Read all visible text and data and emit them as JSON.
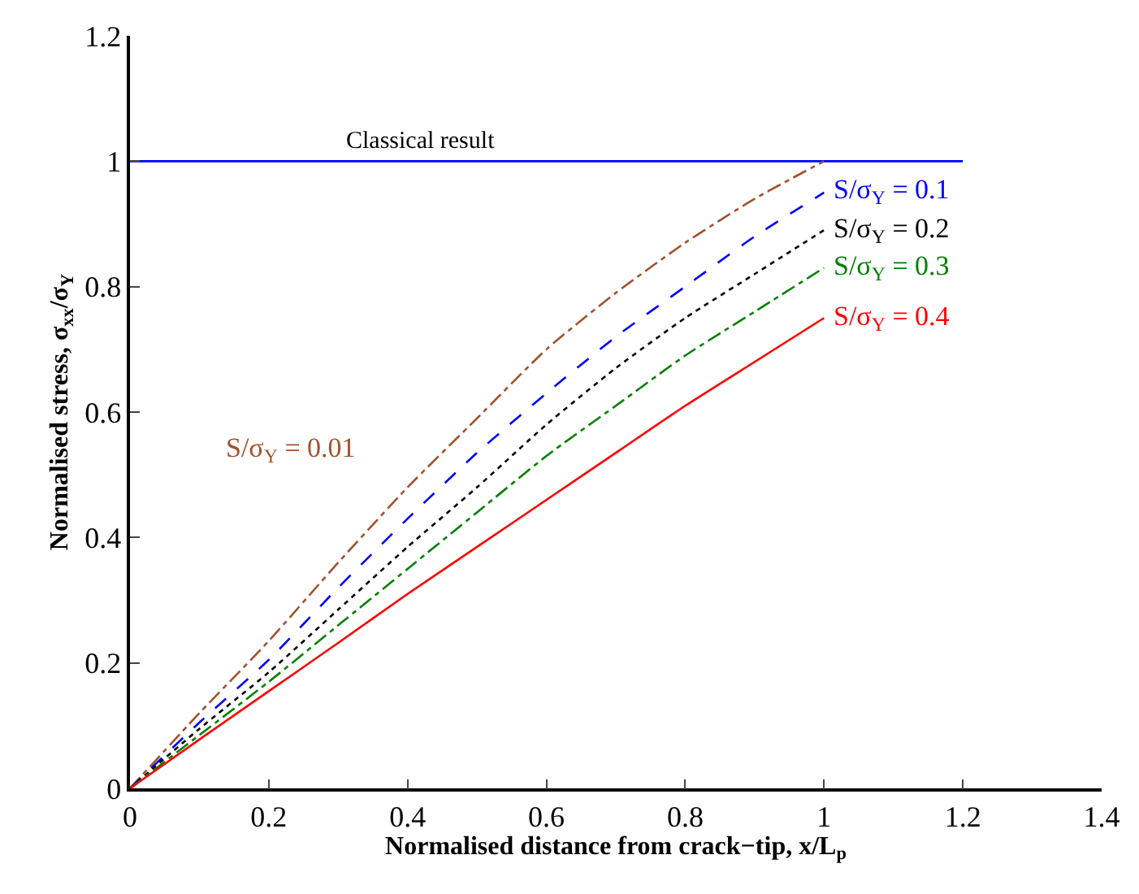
{
  "chart_data": {
    "type": "line",
    "xlabel": "Normalised distance from crack−tip, x/L$_{p}$",
    "ylabel": "Normalised stress, σ$_{xx}$/σ$_{Y}$",
    "xlim": [
      0,
      1.4
    ],
    "xticks": [
      0,
      0.2,
      0.4,
      0.6,
      0.8,
      1,
      1.2,
      1.4
    ],
    "ylim": [
      0,
      1.2
    ],
    "yticks": [
      0,
      0.2,
      0.4,
      0.6,
      0.8,
      1,
      1.2
    ],
    "legend": false,
    "annotations": [
      {
        "text": "Classical result",
        "x": 0.42,
        "y": 1
      }
    ],
    "marker": "none",
    "series": [
      {
        "color": "#0000ff",
        "line_style": "solid",
        "x": [
          0,
          1.2
        ],
        "values": [
          1,
          1
        ]
      },
      {
        "name": "S/σ$_{Y}$ = 0.01",
        "color": "#a0522d",
        "line_style": "dashdot",
        "x": [
          0,
          0.1,
          0.2,
          0.3,
          0.4,
          0.5,
          0.6,
          0.7,
          0.8,
          0.9,
          1.0
        ],
        "values": [
          0,
          0.12,
          0.235,
          0.36,
          0.48,
          0.59,
          0.7,
          0.79,
          0.87,
          0.94,
          1.0
        ]
      },
      {
        "name": "S/σ$_{Y}$ = 0.1",
        "color": "#0000ff",
        "line_style": "dashed",
        "x": [
          0,
          0.1,
          0.2,
          0.3,
          0.4,
          0.5,
          0.6,
          0.7,
          0.8,
          0.9,
          1.0
        ],
        "values": [
          0,
          0.105,
          0.205,
          0.32,
          0.43,
          0.535,
          0.63,
          0.72,
          0.8,
          0.88,
          0.95
        ]
      },
      {
        "name": "S/σ$_{Y}$ = 0.2",
        "color": "#000000",
        "line_style": "dotted",
        "x": [
          0,
          0.1,
          0.2,
          0.3,
          0.4,
          0.5,
          0.6,
          0.7,
          0.8,
          0.9,
          1.0
        ],
        "values": [
          0,
          0.095,
          0.185,
          0.285,
          0.385,
          0.48,
          0.58,
          0.67,
          0.75,
          0.82,
          0.89
        ]
      },
      {
        "name": "S/σ$_{Y}$ = 0.3",
        "color": "#008000",
        "line_style": "dashdot",
        "x": [
          0,
          0.1,
          0.2,
          0.3,
          0.4,
          0.5,
          0.6,
          0.7,
          0.8,
          0.9,
          1.0
        ],
        "values": [
          0,
          0.085,
          0.17,
          0.26,
          0.35,
          0.44,
          0.53,
          0.61,
          0.69,
          0.76,
          0.83
        ]
      },
      {
        "name": "S/σ$_{Y}$ = 0.4",
        "color": "#ff0000",
        "line_style": "solid",
        "x": [
          0,
          0.1,
          0.2,
          0.3,
          0.4,
          0.5,
          0.6,
          0.7,
          0.8,
          0.9,
          1.0
        ],
        "values": [
          0,
          0.078,
          0.155,
          0.232,
          0.31,
          0.385,
          0.46,
          0.535,
          0.61,
          0.68,
          0.75
        ]
      }
    ]
  }
}
